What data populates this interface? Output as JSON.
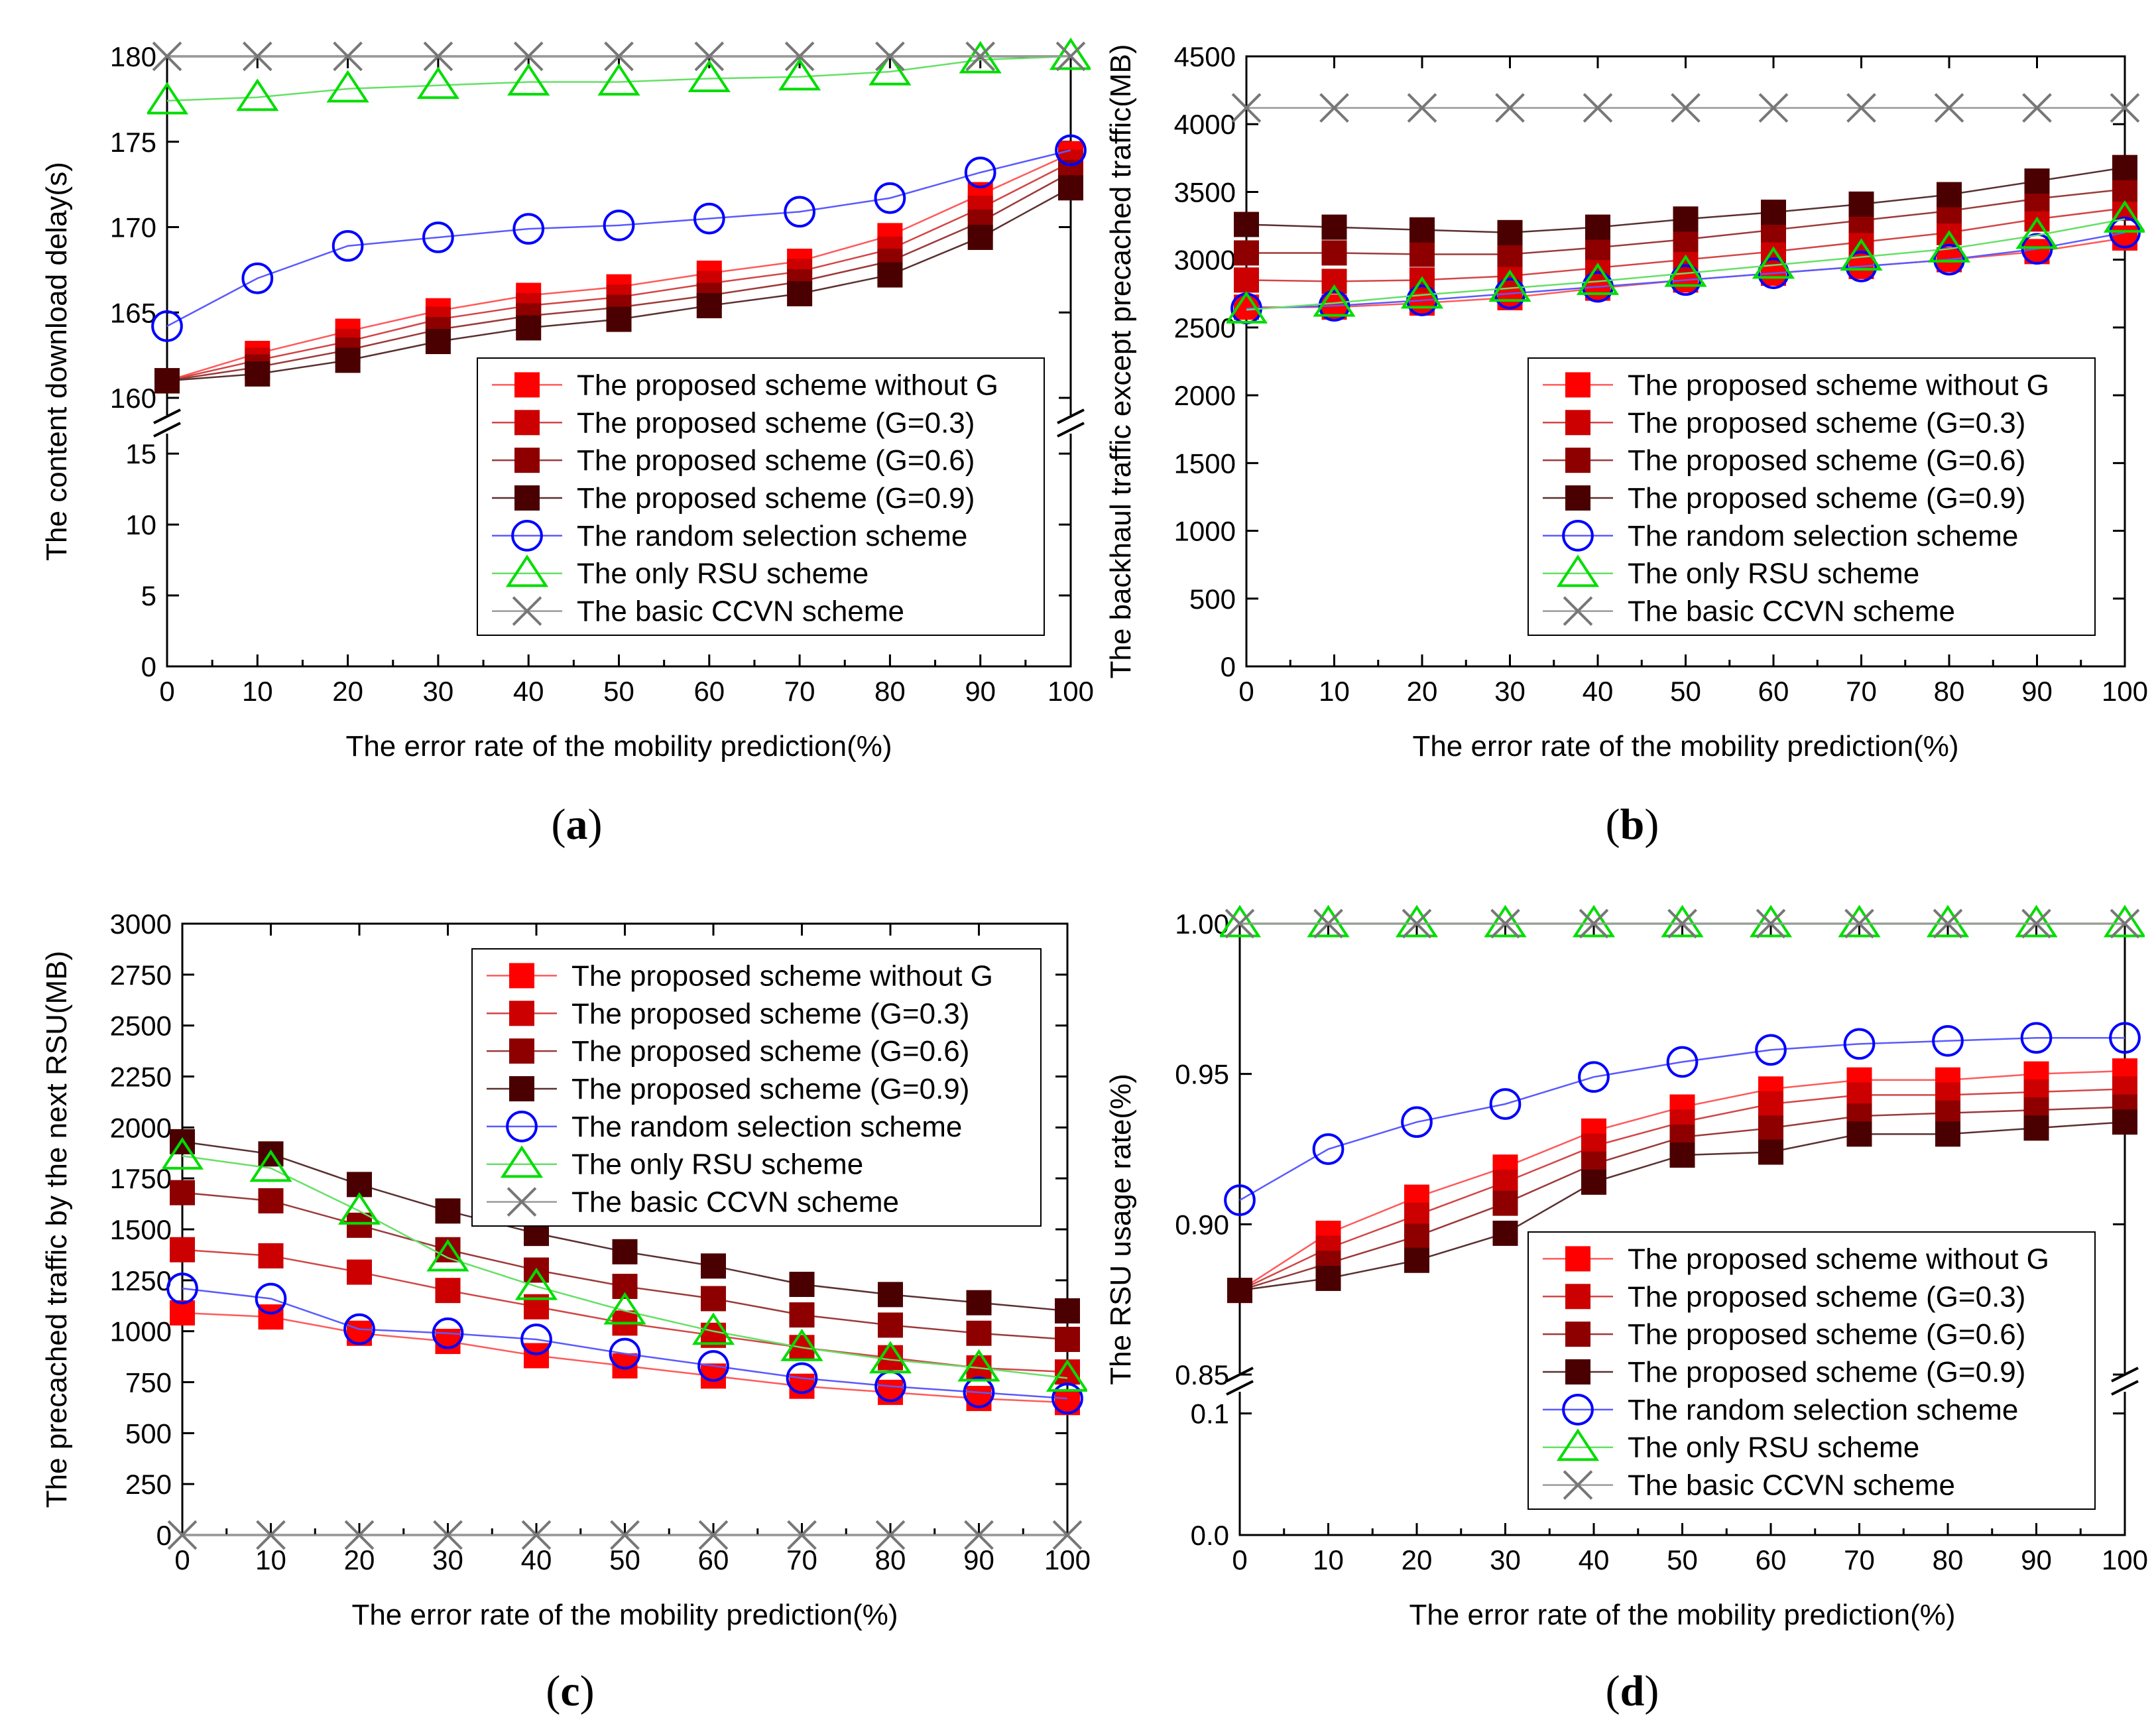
{
  "figure_title": "",
  "chart_data": [
    {
      "panel": "(a)",
      "caption_letter": "a",
      "type": "line",
      "xlabel": "The error rate of the mobility prediction(%)",
      "ylabel": "The content download delay(s)",
      "x": [
        0,
        10,
        20,
        30,
        40,
        50,
        60,
        70,
        80,
        90,
        100
      ],
      "xticks": [
        "0",
        "10",
        "20",
        "30",
        "40",
        "50",
        "60",
        "70",
        "80",
        "90",
        "100"
      ],
      "xlim": [
        0,
        100
      ],
      "broken_axis": {
        "lower_range": [
          0,
          18
        ],
        "upper_range": [
          160,
          180
        ]
      },
      "yticks_lower": [
        "0",
        "5",
        "10",
        "15"
      ],
      "yticks_upper": [
        "160",
        "165",
        "170",
        "175",
        "180"
      ],
      "legend_position": "bottom-right",
      "series": [
        {
          "name": "The proposed scheme without G",
          "style": "r0",
          "values": [
            161.0,
            162.6,
            163.9,
            165.1,
            166.0,
            166.5,
            167.3,
            168.0,
            169.5,
            171.9,
            174.3
          ]
        },
        {
          "name": "The proposed scheme (G=0.3)",
          "style": "r1",
          "values": [
            161.0,
            162.2,
            163.3,
            164.6,
            165.4,
            165.9,
            166.7,
            167.4,
            168.7,
            171.1,
            173.8
          ]
        },
        {
          "name": "The proposed scheme (G=0.6)",
          "style": "r2",
          "values": [
            161.0,
            161.8,
            162.8,
            164.0,
            164.8,
            165.3,
            166.0,
            166.8,
            168.0,
            170.3,
            173.2
          ]
        },
        {
          "name": "The proposed scheme (G=0.9)",
          "style": "r3",
          "values": [
            161.0,
            161.4,
            162.2,
            163.3,
            164.1,
            164.6,
            165.4,
            166.1,
            167.2,
            169.4,
            172.3
          ]
        },
        {
          "name": "The random selection scheme",
          "style": "circle",
          "values": [
            164.2,
            167.0,
            168.9,
            169.4,
            169.9,
            170.1,
            170.5,
            170.9,
            171.7,
            173.2,
            174.5
          ]
        },
        {
          "name": "The only RSU scheme",
          "style": "triangle",
          "values": [
            177.4,
            177.6,
            178.1,
            178.3,
            178.5,
            178.5,
            178.7,
            178.8,
            179.1,
            179.8,
            180.0
          ]
        },
        {
          "name": "The basic CCVN scheme",
          "style": "cross",
          "values": [
            180,
            180,
            180,
            180,
            180,
            180,
            180,
            180,
            180,
            180,
            180
          ]
        }
      ]
    },
    {
      "panel": "(b)",
      "caption_letter": "b",
      "type": "line",
      "xlabel": "The error rate of the mobility prediction(%)",
      "ylabel": "The backhaul traffic except precached traffic(MB)",
      "x": [
        0,
        10,
        20,
        30,
        40,
        50,
        60,
        70,
        80,
        90,
        100
      ],
      "xticks": [
        "0",
        "10",
        "20",
        "30",
        "40",
        "50",
        "60",
        "70",
        "80",
        "90",
        "100"
      ],
      "xlim": [
        0,
        100
      ],
      "ylim": [
        0,
        4500
      ],
      "yticks": [
        "0",
        "500",
        "1000",
        "1500",
        "2000",
        "2500",
        "3000",
        "3500",
        "4000",
        "4500"
      ],
      "legend_position": "bottom-right",
      "series": [
        {
          "name": "The proposed scheme without G",
          "style": "r0",
          "values": [
            2650,
            2650,
            2680,
            2720,
            2790,
            2850,
            2900,
            2950,
            3000,
            3060,
            3160
          ]
        },
        {
          "name": "The proposed scheme (G=0.3)",
          "style": "r1",
          "values": [
            2850,
            2840,
            2850,
            2880,
            2940,
            3000,
            3060,
            3130,
            3200,
            3300,
            3380
          ]
        },
        {
          "name": "The proposed scheme (G=0.6)",
          "style": "r2",
          "values": [
            3050,
            3050,
            3040,
            3040,
            3090,
            3150,
            3220,
            3290,
            3360,
            3450,
            3520
          ]
        },
        {
          "name": "The proposed scheme (G=0.9)",
          "style": "r3",
          "values": [
            3260,
            3240,
            3220,
            3200,
            3240,
            3300,
            3350,
            3410,
            3480,
            3580,
            3680
          ]
        },
        {
          "name": "The random selection scheme",
          "style": "circle",
          "values": [
            2640,
            2660,
            2700,
            2750,
            2800,
            2850,
            2900,
            2950,
            3000,
            3080,
            3200
          ]
        },
        {
          "name": "The only RSU scheme",
          "style": "triangle",
          "values": [
            2630,
            2680,
            2740,
            2790,
            2840,
            2900,
            2960,
            3020,
            3080,
            3180,
            3300
          ]
        },
        {
          "name": "The basic CCVN scheme",
          "style": "cross",
          "values": [
            4120,
            4120,
            4120,
            4120,
            4120,
            4120,
            4120,
            4120,
            4120,
            4120,
            4120
          ]
        }
      ]
    },
    {
      "panel": "(c)",
      "caption_letter": "c",
      "type": "line",
      "xlabel": "The error rate of the mobility prediction(%)",
      "ylabel": "The precached traffic by the next RSU(MB)",
      "x": [
        0,
        10,
        20,
        30,
        40,
        50,
        60,
        70,
        80,
        90,
        100
      ],
      "xticks": [
        "0",
        "10",
        "20",
        "30",
        "40",
        "50",
        "60",
        "70",
        "80",
        "90",
        "100"
      ],
      "xlim": [
        0,
        100
      ],
      "ylim": [
        0,
        3000
      ],
      "yticks": [
        "0",
        "250",
        "500",
        "750",
        "1000",
        "1250",
        "1500",
        "1750",
        "2000",
        "2250",
        "2500",
        "2750",
        "3000"
      ],
      "legend_position": "top-right",
      "series": [
        {
          "name": "The proposed scheme without G",
          "style": "r0",
          "values": [
            1090,
            1070,
            990,
            950,
            880,
            830,
            780,
            730,
            700,
            670,
            650
          ]
        },
        {
          "name": "The proposed scheme (G=0.3)",
          "style": "r1",
          "values": [
            1400,
            1370,
            1290,
            1200,
            1120,
            1040,
            980,
            920,
            870,
            820,
            800
          ]
        },
        {
          "name": "The proposed scheme (G=0.6)",
          "style": "r2",
          "values": [
            1680,
            1640,
            1520,
            1400,
            1300,
            1220,
            1160,
            1080,
            1030,
            990,
            960
          ]
        },
        {
          "name": "The proposed scheme (G=0.9)",
          "style": "r3",
          "values": [
            1930,
            1870,
            1720,
            1590,
            1480,
            1390,
            1320,
            1230,
            1180,
            1140,
            1100
          ]
        },
        {
          "name": "The random selection scheme",
          "style": "circle",
          "values": [
            1210,
            1160,
            1010,
            990,
            960,
            890,
            830,
            770,
            730,
            700,
            670
          ]
        },
        {
          "name": "The only RSU scheme",
          "style": "triangle",
          "values": [
            1860,
            1800,
            1590,
            1360,
            1220,
            1100,
            1000,
            920,
            860,
            820,
            770
          ]
        },
        {
          "name": "The basic CCVN scheme",
          "style": "cross",
          "values": [
            0,
            0,
            0,
            0,
            0,
            0,
            0,
            0,
            0,
            0,
            0
          ]
        }
      ]
    },
    {
      "panel": "(d)",
      "caption_letter": "d",
      "type": "line",
      "xlabel": "The error rate of the mobility prediction(%)",
      "ylabel": "The RSU usage rate(%)",
      "x": [
        0,
        10,
        20,
        30,
        40,
        50,
        60,
        70,
        80,
        90,
        100
      ],
      "xticks": [
        "0",
        "10",
        "20",
        "30",
        "40",
        "50",
        "60",
        "70",
        "80",
        "90",
        "100"
      ],
      "xlim": [
        0,
        100
      ],
      "broken_axis": {
        "lower_range": [
          0,
          0.12
        ],
        "upper_range": [
          0.85,
          1.0
        ]
      },
      "yticks_lower": [
        "0.0",
        "0.1"
      ],
      "yticks_upper": [
        "0.85",
        "0.90",
        "0.95",
        "1.00"
      ],
      "legend_position": "bottom-right",
      "series": [
        {
          "name": "The proposed scheme without G",
          "style": "r0",
          "values": [
            0.878,
            0.897,
            0.909,
            0.919,
            0.931,
            0.939,
            0.945,
            0.948,
            0.948,
            0.95,
            0.951
          ]
        },
        {
          "name": "The proposed scheme (G=0.3)",
          "style": "r1",
          "values": [
            0.878,
            0.892,
            0.903,
            0.914,
            0.926,
            0.934,
            0.94,
            0.943,
            0.943,
            0.944,
            0.945
          ]
        },
        {
          "name": "The proposed scheme (G=0.6)",
          "style": "r2",
          "values": [
            0.878,
            0.887,
            0.896,
            0.907,
            0.92,
            0.929,
            0.932,
            0.936,
            0.937,
            0.938,
            0.939
          ]
        },
        {
          "name": "The proposed scheme (G=0.9)",
          "style": "r3",
          "values": [
            0.878,
            0.882,
            0.888,
            0.897,
            0.914,
            0.923,
            0.924,
            0.93,
            0.93,
            0.932,
            0.934
          ]
        },
        {
          "name": "The random selection scheme",
          "style": "circle",
          "values": [
            0.908,
            0.925,
            0.934,
            0.94,
            0.949,
            0.954,
            0.958,
            0.96,
            0.961,
            0.962,
            0.962
          ]
        },
        {
          "name": "The only RSU scheme",
          "style": "triangle",
          "values": [
            1.0,
            1.0,
            1.0,
            1.0,
            1.0,
            1.0,
            1.0,
            1.0,
            1.0,
            1.0,
            1.0
          ]
        },
        {
          "name": "The basic CCVN scheme",
          "style": "cross",
          "values": [
            1.0,
            1.0,
            1.0,
            1.0,
            1.0,
            1.0,
            1.0,
            1.0,
            1.0,
            1.0,
            1.0
          ]
        }
      ]
    }
  ],
  "styles": {
    "r0": {
      "color": "#ff0000",
      "line": "#ff5a5a"
    },
    "r1": {
      "color": "#cc0000",
      "line": "#d24646"
    },
    "r2": {
      "color": "#8e0000",
      "line": "#9b3a3a"
    },
    "r3": {
      "color": "#4a0000",
      "line": "#5a3030"
    },
    "circle": {
      "color": "#0000ff",
      "line": "#5a5aff"
    },
    "triangle": {
      "color": "#00dd00",
      "line": "#66e066"
    },
    "cross": {
      "color": "#777777",
      "line": "#9a9a9a"
    }
  }
}
